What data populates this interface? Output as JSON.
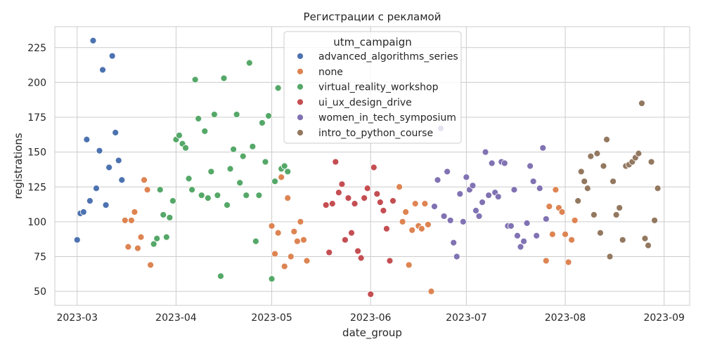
{
  "chart_data": {
    "type": "scatter",
    "title": "Регистрации с рекламой",
    "xlabel": "date_group",
    "ylabel": "registrations",
    "xlim": [
      "2023-02-22",
      "2023-09-09"
    ],
    "ylim": [
      40,
      240
    ],
    "x_ticks": [
      "2023-03-01",
      "2023-04-01",
      "2023-05-01",
      "2023-06-01",
      "2023-07-01",
      "2023-08-01",
      "2023-09-01"
    ],
    "x_tick_labels": [
      "2023-03",
      "2023-04",
      "2023-05",
      "2023-06",
      "2023-07",
      "2023-08",
      "2023-09"
    ],
    "y_ticks": [
      50,
      75,
      100,
      125,
      150,
      175,
      200,
      225
    ],
    "grid": true,
    "legend": {
      "title": "utm_campaign",
      "placement": "top-center"
    },
    "series": [
      {
        "name": "advanced_algorithms_series",
        "color": "#4c72b0",
        "points": [
          [
            "2023-03-01",
            87
          ],
          [
            "2023-03-02",
            106
          ],
          [
            "2023-03-03",
            107
          ],
          [
            "2023-03-04",
            159
          ],
          [
            "2023-03-05",
            115
          ],
          [
            "2023-03-06",
            230
          ],
          [
            "2023-03-07",
            124
          ],
          [
            "2023-03-08",
            151
          ],
          [
            "2023-03-09",
            209
          ],
          [
            "2023-03-10",
            112
          ],
          [
            "2023-03-11",
            139
          ],
          [
            "2023-03-12",
            219
          ],
          [
            "2023-03-13",
            164
          ],
          [
            "2023-03-14",
            144
          ],
          [
            "2023-03-15",
            130
          ]
        ]
      },
      {
        "name": "none",
        "color": "#dd8452",
        "points": [
          [
            "2023-03-16",
            101
          ],
          [
            "2023-03-17",
            82
          ],
          [
            "2023-03-18",
            101
          ],
          [
            "2023-03-19",
            107
          ],
          [
            "2023-03-20",
            81
          ],
          [
            "2023-03-21",
            89
          ],
          [
            "2023-03-22",
            130
          ],
          [
            "2023-03-23",
            123
          ],
          [
            "2023-03-24",
            69
          ],
          [
            "2023-05-01",
            97
          ],
          [
            "2023-05-02",
            77
          ],
          [
            "2023-05-03",
            92
          ],
          [
            "2023-05-04",
            132
          ],
          [
            "2023-05-05",
            68
          ],
          [
            "2023-05-06",
            117
          ],
          [
            "2023-05-07",
            75
          ],
          [
            "2023-05-08",
            93
          ],
          [
            "2023-05-09",
            86
          ],
          [
            "2023-05-10",
            100
          ],
          [
            "2023-05-11",
            87
          ],
          [
            "2023-05-12",
            72
          ],
          [
            "2023-06-10",
            125
          ],
          [
            "2023-06-11",
            100
          ],
          [
            "2023-06-12",
            107
          ],
          [
            "2023-06-13",
            69
          ],
          [
            "2023-06-14",
            94
          ],
          [
            "2023-06-15",
            113
          ],
          [
            "2023-06-16",
            97
          ],
          [
            "2023-06-17",
            95
          ],
          [
            "2023-06-18",
            113
          ],
          [
            "2023-06-19",
            98
          ],
          [
            "2023-06-20",
            50
          ],
          [
            "2023-07-26",
            72
          ],
          [
            "2023-07-27",
            111
          ],
          [
            "2023-07-28",
            91
          ],
          [
            "2023-07-29",
            123
          ],
          [
            "2023-07-30",
            110
          ],
          [
            "2023-07-31",
            107
          ],
          [
            "2023-08-01",
            91
          ],
          [
            "2023-08-02",
            71
          ],
          [
            "2023-08-03",
            87
          ],
          [
            "2023-08-04",
            101
          ]
        ]
      },
      {
        "name": "virtual_reality_workshop",
        "color": "#55a868",
        "points": [
          [
            "2023-03-25",
            84
          ],
          [
            "2023-03-26",
            88
          ],
          [
            "2023-03-27",
            123
          ],
          [
            "2023-03-28",
            105
          ],
          [
            "2023-03-29",
            89
          ],
          [
            "2023-03-30",
            103
          ],
          [
            "2023-03-31",
            115
          ],
          [
            "2023-04-01",
            159
          ],
          [
            "2023-04-02",
            162
          ],
          [
            "2023-04-03",
            156
          ],
          [
            "2023-04-04",
            153
          ],
          [
            "2023-04-05",
            131
          ],
          [
            "2023-04-06",
            123
          ],
          [
            "2023-04-07",
            202
          ],
          [
            "2023-04-08",
            174
          ],
          [
            "2023-04-09",
            119
          ],
          [
            "2023-04-10",
            165
          ],
          [
            "2023-04-11",
            117
          ],
          [
            "2023-04-12",
            136
          ],
          [
            "2023-04-13",
            177
          ],
          [
            "2023-04-14",
            119
          ],
          [
            "2023-04-15",
            61
          ],
          [
            "2023-04-16",
            203
          ],
          [
            "2023-04-17",
            112
          ],
          [
            "2023-04-18",
            138
          ],
          [
            "2023-04-19",
            152
          ],
          [
            "2023-04-20",
            177
          ],
          [
            "2023-04-21",
            128
          ],
          [
            "2023-04-22",
            147
          ],
          [
            "2023-04-23",
            119
          ],
          [
            "2023-04-24",
            214
          ],
          [
            "2023-04-25",
            154
          ],
          [
            "2023-04-26",
            86
          ],
          [
            "2023-04-27",
            119
          ],
          [
            "2023-04-28",
            171
          ],
          [
            "2023-04-29",
            143
          ],
          [
            "2023-04-30",
            176
          ],
          [
            "2023-05-01",
            59
          ],
          [
            "2023-05-02",
            129
          ],
          [
            "2023-05-03",
            196
          ],
          [
            "2023-05-04",
            138
          ],
          [
            "2023-05-05",
            140
          ],
          [
            "2023-05-06",
            136
          ]
        ]
      },
      {
        "name": "ui_ux_design_drive",
        "color": "#c44e52",
        "points": [
          [
            "2023-05-18",
            112
          ],
          [
            "2023-05-19",
            78
          ],
          [
            "2023-05-20",
            113
          ],
          [
            "2023-05-21",
            143
          ],
          [
            "2023-05-22",
            121
          ],
          [
            "2023-05-23",
            127
          ],
          [
            "2023-05-24",
            87
          ],
          [
            "2023-05-25",
            117
          ],
          [
            "2023-05-26",
            92
          ],
          [
            "2023-05-27",
            113
          ],
          [
            "2023-05-28",
            79
          ],
          [
            "2023-05-29",
            74
          ],
          [
            "2023-05-30",
            117
          ],
          [
            "2023-05-31",
            124
          ],
          [
            "2023-06-01",
            48
          ],
          [
            "2023-06-02",
            139
          ],
          [
            "2023-06-03",
            120
          ],
          [
            "2023-06-04",
            114
          ],
          [
            "2023-06-05",
            108
          ],
          [
            "2023-06-06",
            95
          ],
          [
            "2023-06-07",
            72
          ],
          [
            "2023-06-08",
            115
          ]
        ]
      },
      {
        "name": "women_in_tech_symposium",
        "color": "#8172b3",
        "points": [
          [
            "2023-06-21",
            111
          ],
          [
            "2023-06-22",
            130
          ],
          [
            "2023-06-23",
            167
          ],
          [
            "2023-06-24",
            104
          ],
          [
            "2023-06-25",
            136
          ],
          [
            "2023-06-26",
            101
          ],
          [
            "2023-06-27",
            85
          ],
          [
            "2023-06-28",
            75
          ],
          [
            "2023-06-29",
            120
          ],
          [
            "2023-06-30",
            100
          ],
          [
            "2023-07-01",
            132
          ],
          [
            "2023-07-02",
            123
          ],
          [
            "2023-07-03",
            126
          ],
          [
            "2023-07-04",
            108
          ],
          [
            "2023-07-05",
            104
          ],
          [
            "2023-07-06",
            114
          ],
          [
            "2023-07-07",
            150
          ],
          [
            "2023-07-08",
            119
          ],
          [
            "2023-07-09",
            142
          ],
          [
            "2023-07-10",
            121
          ],
          [
            "2023-07-11",
            118
          ],
          [
            "2023-07-12",
            143
          ],
          [
            "2023-07-13",
            142
          ],
          [
            "2023-07-14",
            97
          ],
          [
            "2023-07-15",
            97
          ],
          [
            "2023-07-16",
            123
          ],
          [
            "2023-07-17",
            90
          ],
          [
            "2023-07-18",
            82
          ],
          [
            "2023-07-19",
            86
          ],
          [
            "2023-07-20",
            99
          ],
          [
            "2023-07-21",
            140
          ],
          [
            "2023-07-22",
            129
          ],
          [
            "2023-07-23",
            90
          ],
          [
            "2023-07-24",
            124
          ],
          [
            "2023-07-25",
            153
          ],
          [
            "2023-07-26",
            102
          ]
        ]
      },
      {
        "name": "intro_to_python_course",
        "color": "#937860",
        "points": [
          [
            "2023-08-05",
            115
          ],
          [
            "2023-08-06",
            136
          ],
          [
            "2023-08-07",
            129
          ],
          [
            "2023-08-08",
            124
          ],
          [
            "2023-08-09",
            147
          ],
          [
            "2023-08-10",
            105
          ],
          [
            "2023-08-11",
            149
          ],
          [
            "2023-08-12",
            92
          ],
          [
            "2023-08-13",
            140
          ],
          [
            "2023-08-14",
            159
          ],
          [
            "2023-08-15",
            75
          ],
          [
            "2023-08-16",
            129
          ],
          [
            "2023-08-17",
            105
          ],
          [
            "2023-08-18",
            110
          ],
          [
            "2023-08-19",
            87
          ],
          [
            "2023-08-20",
            140
          ],
          [
            "2023-08-21",
            141
          ],
          [
            "2023-08-22",
            143
          ],
          [
            "2023-08-23",
            146
          ],
          [
            "2023-08-24",
            149
          ],
          [
            "2023-08-25",
            185
          ],
          [
            "2023-08-26",
            88
          ],
          [
            "2023-08-27",
            83
          ],
          [
            "2023-08-28",
            143
          ],
          [
            "2023-08-29",
            101
          ],
          [
            "2023-08-30",
            124
          ]
        ]
      }
    ]
  }
}
